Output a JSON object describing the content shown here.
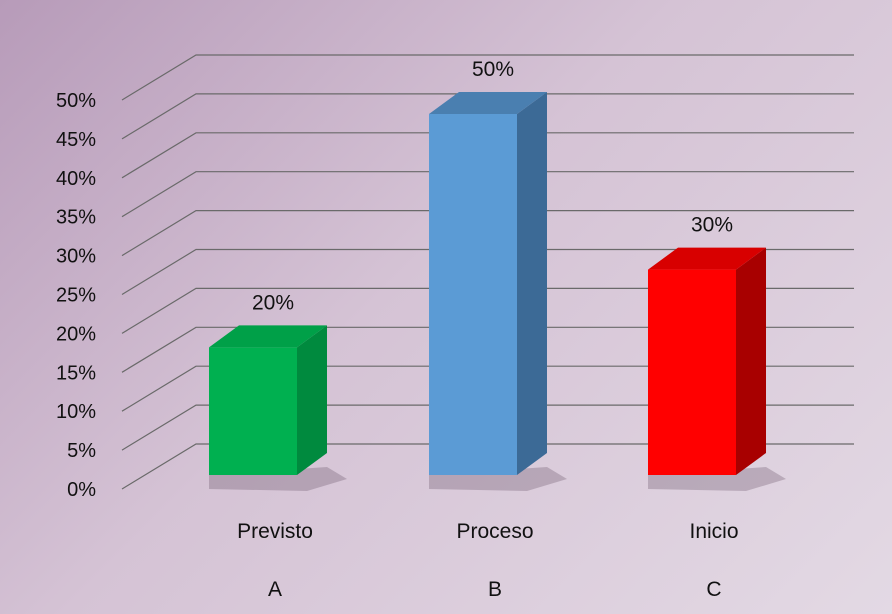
{
  "chart_data": {
    "type": "bar",
    "categories": [
      "Previsto",
      "Proceso",
      "Inicio"
    ],
    "category_letters": [
      "A",
      "B",
      "C"
    ],
    "values": [
      20,
      50,
      30
    ],
    "data_labels": [
      "20%",
      "50%",
      "30%"
    ],
    "ylim": [
      0,
      50
    ],
    "ytick_step": 5,
    "ytick_labels": [
      "0%",
      "5%",
      "10%",
      "15%",
      "20%",
      "25%",
      "30%",
      "35%",
      "40%",
      "45%",
      "50%"
    ],
    "title": "",
    "xlabel": "",
    "ylabel": "",
    "grid": true,
    "legend": "none",
    "three_d": true,
    "colors": {
      "bars": [
        {
          "front": "#00b050",
          "side": "#008a3e",
          "top": "#00a048"
        },
        {
          "front": "#5b9bd5",
          "side": "#3c6a96",
          "top": "#4a7fb0"
        },
        {
          "front": "#ff0000",
          "side": "#a80000",
          "top": "#d80000"
        }
      ],
      "grid": "#6a6a6a"
    }
  }
}
